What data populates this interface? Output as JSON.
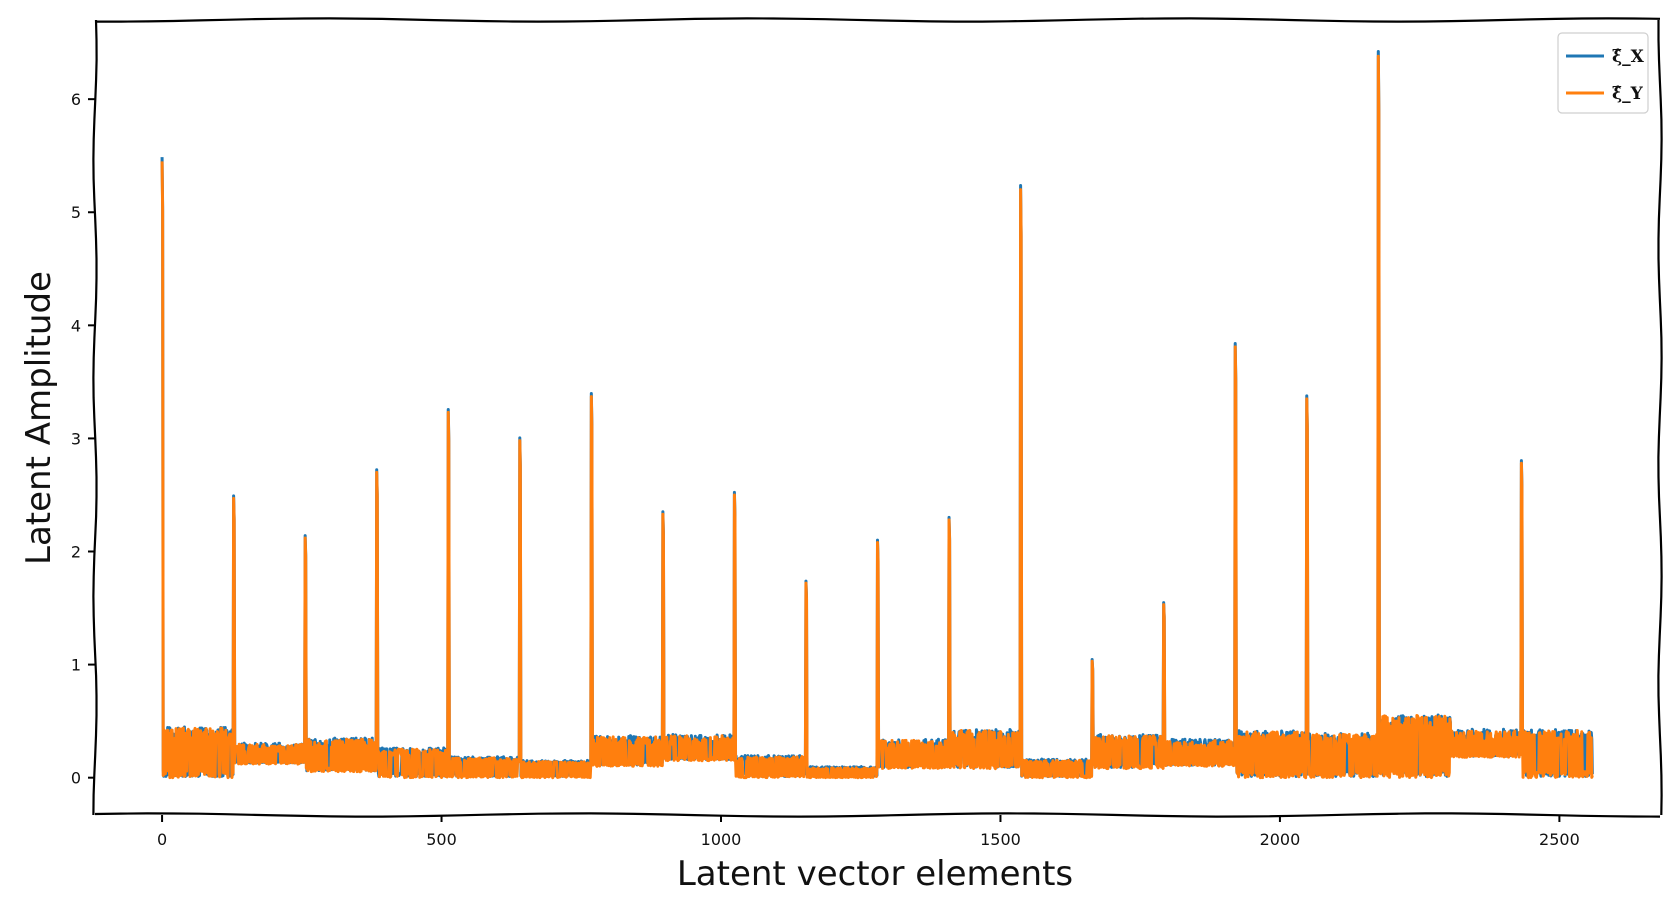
{
  "chart_data": {
    "type": "line",
    "title": "",
    "xlabel": "Latent vector elements",
    "ylabel": "Latent Amplitude",
    "xlim": [
      -120,
      2680
    ],
    "ylim": [
      -0.33,
      6.7
    ],
    "xticks": [
      0,
      500,
      1000,
      1500,
      2000,
      2500
    ],
    "yticks": [
      0,
      1,
      2,
      3,
      4,
      5,
      6
    ],
    "grid": false,
    "legend_position": "top-right",
    "block_size": 128,
    "series": [
      {
        "name": "ξ̂_X",
        "color": "#1f77b4"
      },
      {
        "name": "ξ̂_Y",
        "color": "#ff7f0e"
      }
    ],
    "peaks": [
      {
        "x": 0,
        "y": 5.45
      },
      {
        "x": 128,
        "y": 2.47
      },
      {
        "x": 256,
        "y": 2.12
      },
      {
        "x": 384,
        "y": 2.7
      },
      {
        "x": 512,
        "y": 3.23
      },
      {
        "x": 640,
        "y": 2.98
      },
      {
        "x": 768,
        "y": 3.37
      },
      {
        "x": 896,
        "y": 2.33
      },
      {
        "x": 1024,
        "y": 2.5
      },
      {
        "x": 1152,
        "y": 1.72
      },
      {
        "x": 1280,
        "y": 2.08
      },
      {
        "x": 1408,
        "y": 2.28
      },
      {
        "x": 1536,
        "y": 5.2
      },
      {
        "x": 1664,
        "y": 1.03
      },
      {
        "x": 1792,
        "y": 1.53
      },
      {
        "x": 1920,
        "y": 3.81
      },
      {
        "x": 2048,
        "y": 3.35
      },
      {
        "x": 2176,
        "y": 6.38
      },
      {
        "x": 2304,
        "y": 0.52
      },
      {
        "x": 2432,
        "y": 2.78
      }
    ],
    "blocks": [
      {
        "start": 0,
        "end": 128,
        "low": 0.0,
        "high": 0.4
      },
      {
        "start": 128,
        "end": 256,
        "low": 0.12,
        "high": 0.27
      },
      {
        "start": 256,
        "end": 384,
        "low": 0.05,
        "high": 0.31
      },
      {
        "start": 384,
        "end": 512,
        "low": 0.0,
        "high": 0.23
      },
      {
        "start": 512,
        "end": 640,
        "low": 0.0,
        "high": 0.16
      },
      {
        "start": 640,
        "end": 768,
        "low": 0.0,
        "high": 0.13
      },
      {
        "start": 768,
        "end": 896,
        "low": 0.1,
        "high": 0.33
      },
      {
        "start": 896,
        "end": 1024,
        "low": 0.15,
        "high": 0.34
      },
      {
        "start": 1024,
        "end": 1152,
        "low": 0.0,
        "high": 0.17
      },
      {
        "start": 1152,
        "end": 1280,
        "low": 0.0,
        "high": 0.08
      },
      {
        "start": 1280,
        "end": 1408,
        "low": 0.08,
        "high": 0.3
      },
      {
        "start": 1408,
        "end": 1536,
        "low": 0.08,
        "high": 0.38
      },
      {
        "start": 1536,
        "end": 1664,
        "low": 0.0,
        "high": 0.14
      },
      {
        "start": 1664,
        "end": 1792,
        "low": 0.08,
        "high": 0.34
      },
      {
        "start": 1792,
        "end": 1920,
        "low": 0.1,
        "high": 0.3
      },
      {
        "start": 1920,
        "end": 2048,
        "low": 0.0,
        "high": 0.37
      },
      {
        "start": 2048,
        "end": 2176,
        "low": 0.0,
        "high": 0.35
      },
      {
        "start": 2176,
        "end": 2304,
        "low": 0.0,
        "high": 0.5
      },
      {
        "start": 2304,
        "end": 2432,
        "low": 0.18,
        "high": 0.38
      },
      {
        "start": 2432,
        "end": 2560,
        "low": 0.0,
        "high": 0.38
      }
    ]
  }
}
